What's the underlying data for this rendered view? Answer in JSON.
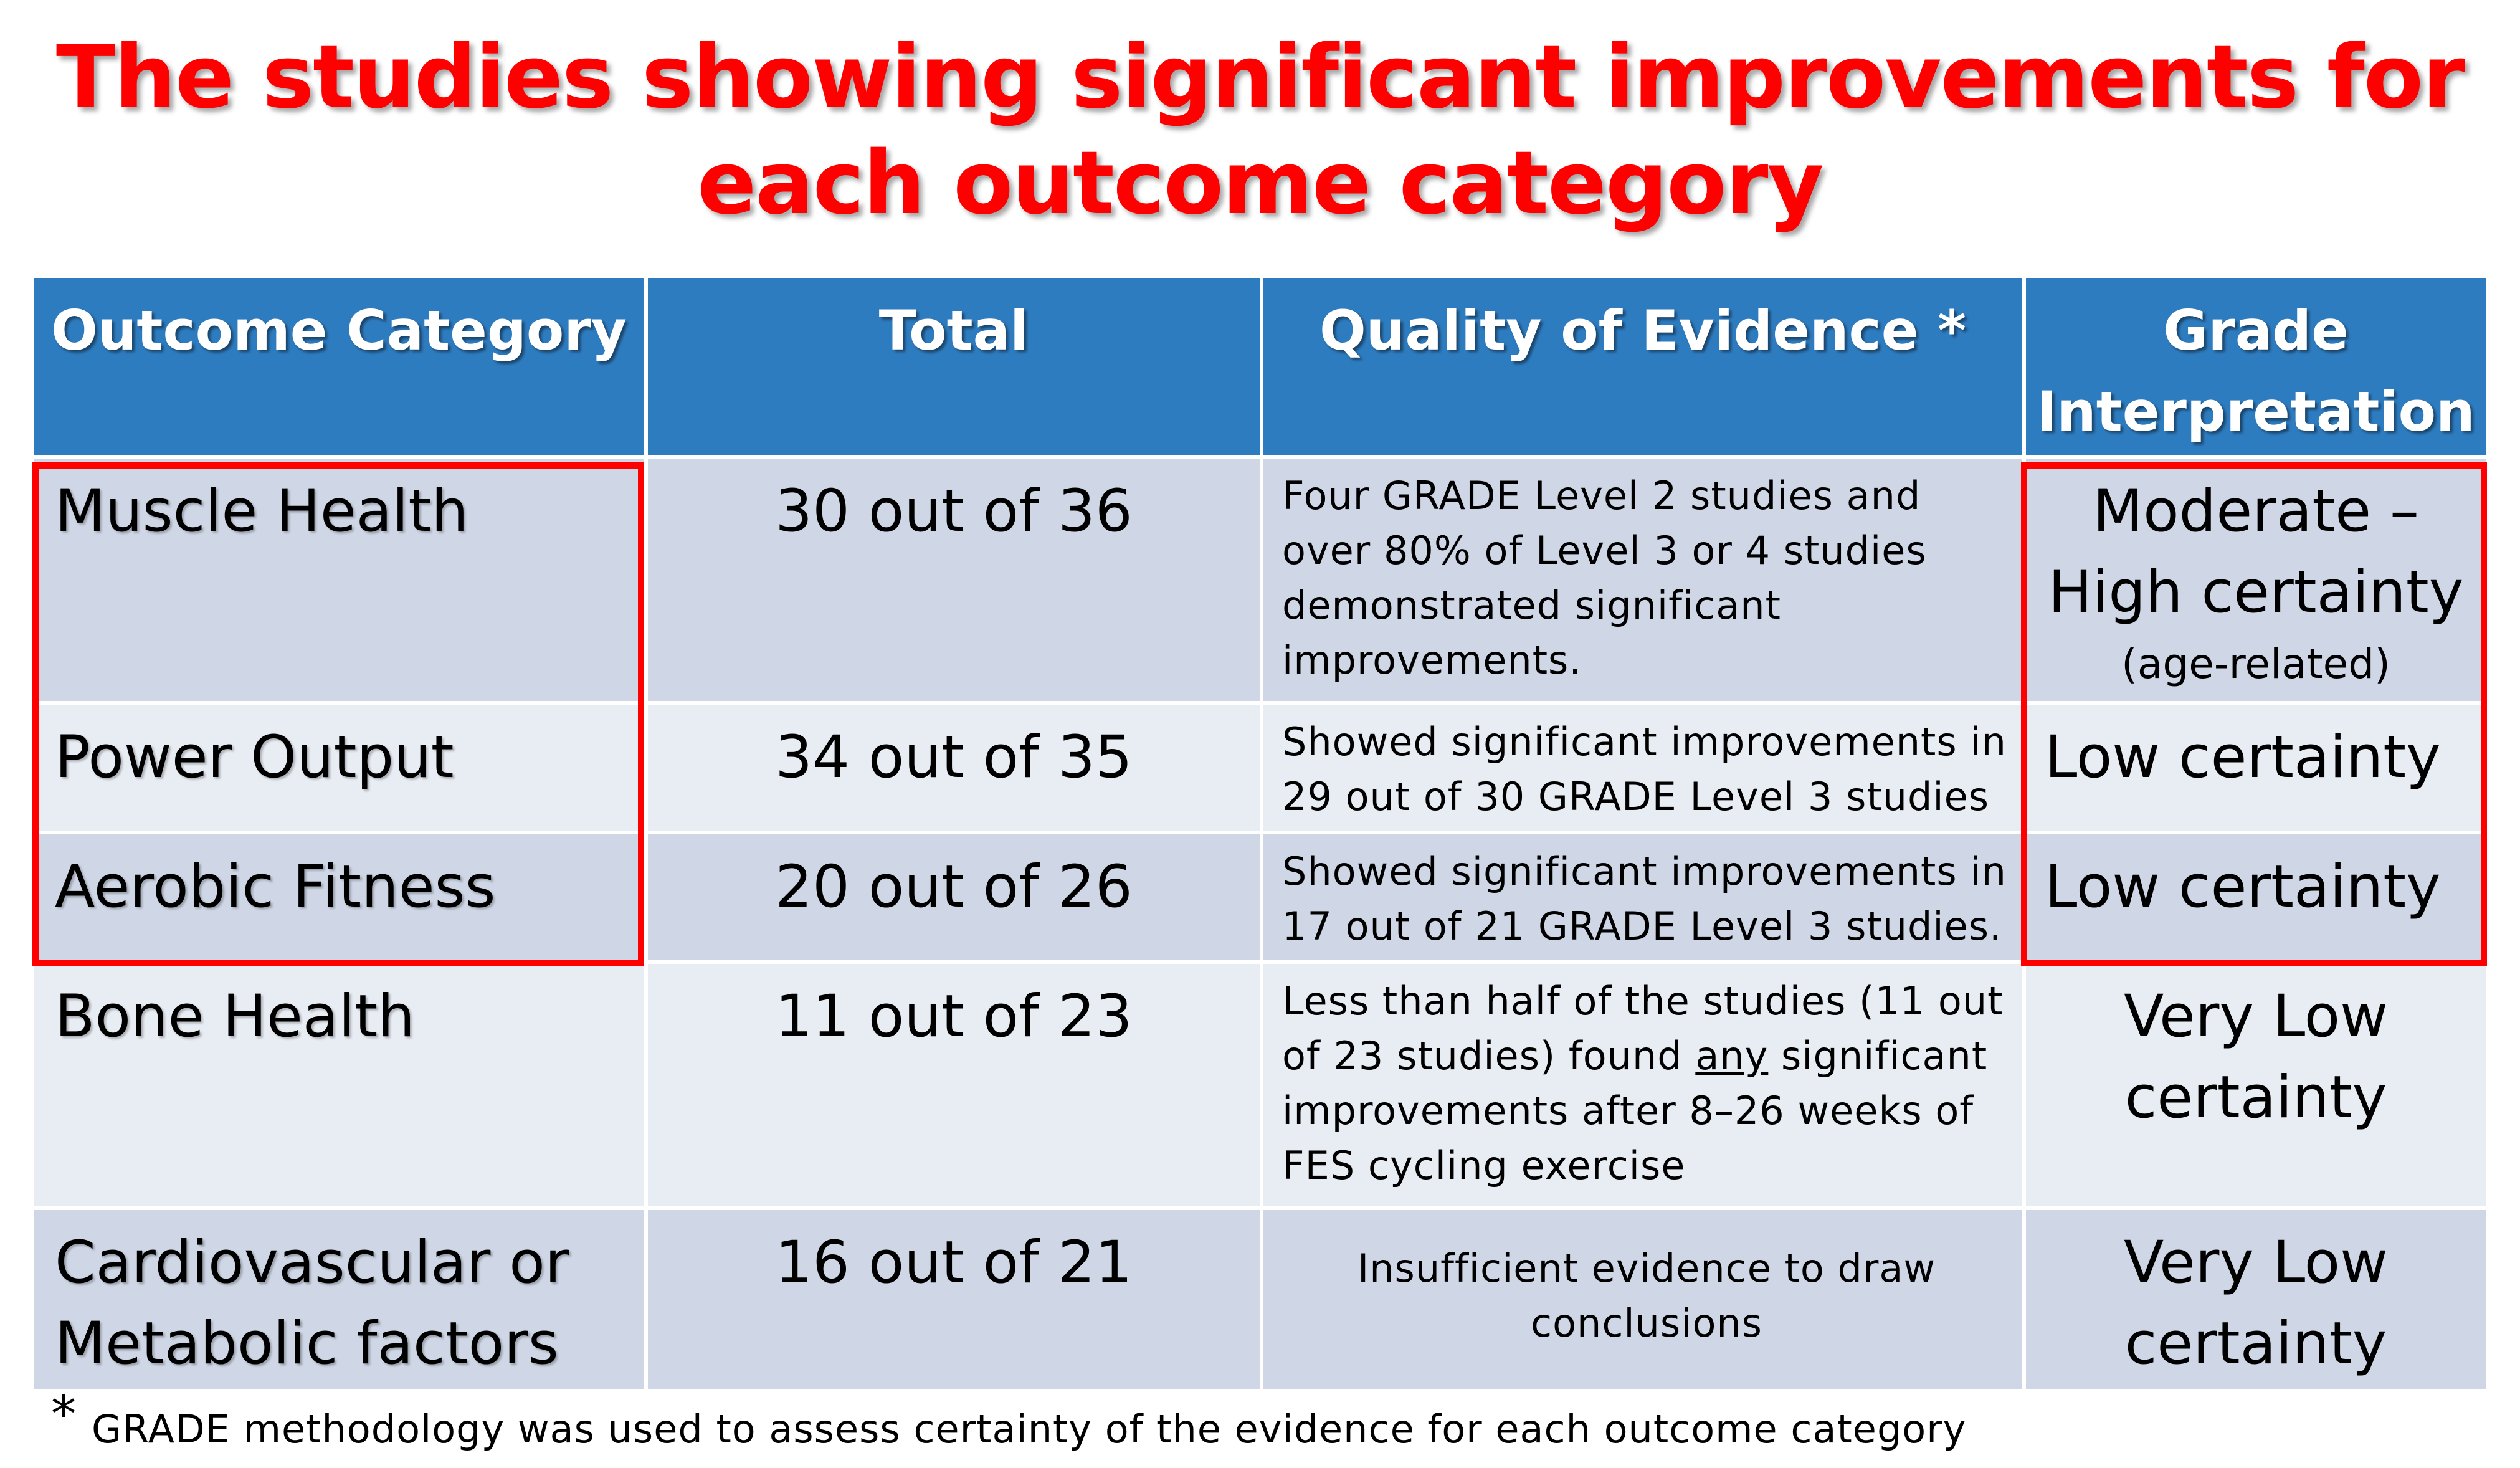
{
  "title": {
    "line1": "The studies showing significant improvements for",
    "line2": "each outcome category"
  },
  "table": {
    "headers": {
      "category": "Outcome Category",
      "total": "Total",
      "quality": "Quality of Evidence *",
      "grade_line1": "Grade",
      "grade_line2": "Interpretation"
    },
    "rows": [
      {
        "category": "Muscle Health",
        "total": "30 out of 36",
        "quality": "Four GRADE Level 2 studies and over 80% of Level 3 or 4 studies demonstrated significant improvements.",
        "grade_main": "Moderate – High certainty",
        "grade_sub": "(age-related)"
      },
      {
        "category": "Power Output",
        "total": "34 out of 35",
        "quality": "Showed significant improvements in 29 out of 30 GRADE Level 3 studies",
        "grade_main": "Low certainty"
      },
      {
        "category": "Aerobic Fitness",
        "total": "20 out of 26",
        "quality": "Showed significant improvements in 17 out of 21 GRADE Level 3 studies.",
        "grade_main": "Low certainty"
      },
      {
        "category": "Bone Health",
        "total": "11 out of 23",
        "quality_before": "Less than half of the studies (11 out of 23 studies) found ",
        "quality_emph": "any",
        "quality_after": " significant improvements after 8–26 weeks of FES cycling exercise",
        "grade_main": "Very Low certainty"
      },
      {
        "category": "Cardiovascular or Metabolic factors",
        "total": "16 out of 21",
        "quality": "Insufficient evidence to draw conclusions",
        "grade_main": "Very Low certainty"
      }
    ]
  },
  "footnote": {
    "star": "*",
    "text": "GRADE methodology was used to assess certainty of the evidence for each outcome category"
  },
  "colors": {
    "title": "#ff0000",
    "header_bg": "#2e7cc0",
    "row_dark": "#cfd7e6",
    "row_light": "#e8ecf3",
    "highlight": "#ff0000"
  }
}
